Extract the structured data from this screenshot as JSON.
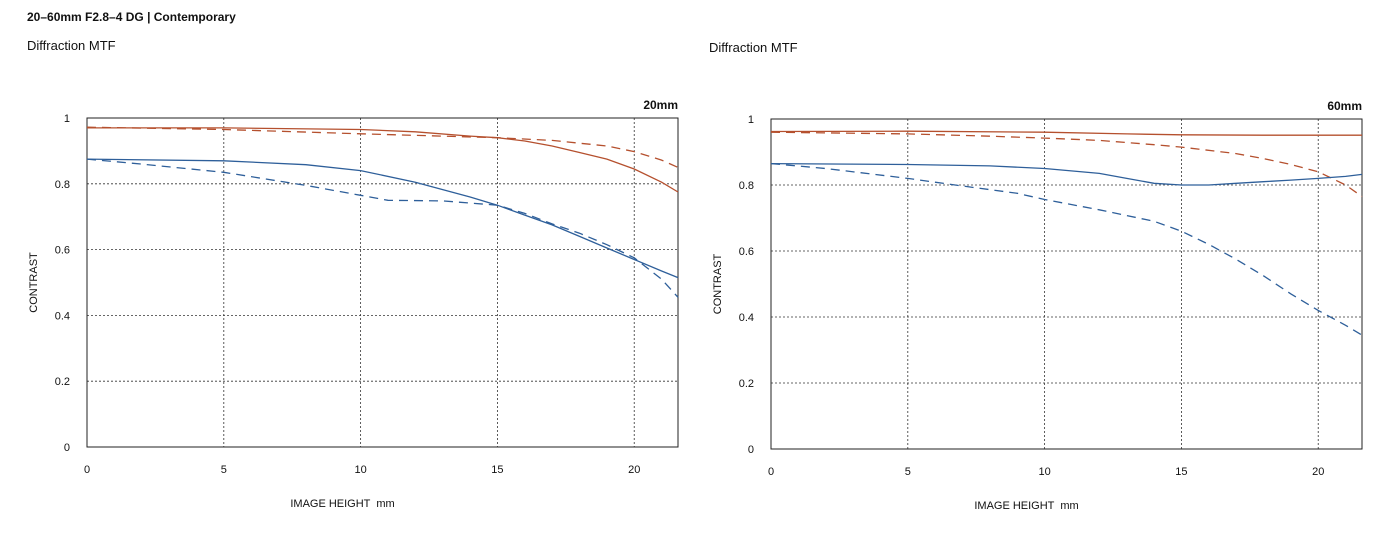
{
  "header": {
    "title": "20–60mm F2.8–4 DG | Contemporary"
  },
  "colors": {
    "sagittal_red": "#b5502e",
    "meridional_blue": "#2e5f9a",
    "grid": "#333333"
  },
  "chart_data": [
    {
      "type": "line",
      "title": "Diffraction MTF",
      "focal_label": "20mm",
      "xlabel": "IMAGE HEIGHT  mm",
      "ylabel": "CONTRAST",
      "xlim": [
        0,
        21.6
      ],
      "ylim": [
        0,
        1
      ],
      "xticks": [
        0,
        5,
        10,
        15,
        20
      ],
      "yticks": [
        0,
        0.2,
        0.4,
        0.6,
        0.8,
        1
      ],
      "ytick_labels": [
        "0",
        "0.2",
        "0.4",
        "0.6",
        "0.8",
        "1"
      ],
      "grid": true,
      "series": [
        {
          "color": "#b5502e",
          "style": "solid",
          "x": [
            0,
            5,
            10,
            12,
            14,
            15,
            16,
            17,
            18,
            19,
            20,
            21,
            21.6
          ],
          "y": [
            0.97,
            0.97,
            0.965,
            0.958,
            0.945,
            0.94,
            0.93,
            0.915,
            0.895,
            0.875,
            0.845,
            0.805,
            0.775
          ]
        },
        {
          "color": "#b5502e",
          "style": "dashed",
          "x": [
            0,
            5,
            10,
            15,
            17,
            19,
            20,
            21,
            21.6
          ],
          "y": [
            0.972,
            0.965,
            0.952,
            0.94,
            0.932,
            0.915,
            0.898,
            0.872,
            0.85
          ]
        },
        {
          "color": "#2e5f9a",
          "style": "solid",
          "x": [
            0,
            5,
            8,
            10,
            12,
            14,
            15,
            16,
            17,
            18,
            19,
            20,
            21,
            21.6
          ],
          "y": [
            0.875,
            0.87,
            0.858,
            0.84,
            0.805,
            0.76,
            0.735,
            0.705,
            0.675,
            0.64,
            0.605,
            0.57,
            0.535,
            0.515
          ]
        },
        {
          "color": "#2e5f9a",
          "style": "dashed",
          "x": [
            0,
            2,
            5,
            8,
            10,
            11,
            13,
            15,
            16,
            17,
            18,
            19,
            20,
            21,
            21.6
          ],
          "y": [
            0.875,
            0.86,
            0.835,
            0.795,
            0.765,
            0.75,
            0.748,
            0.735,
            0.71,
            0.678,
            0.65,
            0.615,
            0.575,
            0.51,
            0.455
          ]
        }
      ]
    },
    {
      "type": "line",
      "title": "Diffraction MTF",
      "focal_label": "60mm",
      "xlabel": "IMAGE HEIGHT  mm",
      "ylabel": "CONTRAST",
      "xlim": [
        0,
        21.6
      ],
      "ylim": [
        0,
        1
      ],
      "xticks": [
        0,
        5,
        10,
        15,
        20
      ],
      "yticks": [
        0,
        0.2,
        0.4,
        0.6,
        0.8,
        1
      ],
      "ytick_labels": [
        "0",
        "0.2",
        "0.4",
        "0.6",
        "0.8",
        "1"
      ],
      "grid": true,
      "series": [
        {
          "color": "#b5502e",
          "style": "solid",
          "x": [
            0,
            5,
            10,
            13,
            15,
            18,
            21.6
          ],
          "y": [
            0.962,
            0.963,
            0.96,
            0.955,
            0.952,
            0.951,
            0.951
          ]
        },
        {
          "color": "#b5502e",
          "style": "dashed",
          "x": [
            0,
            5,
            8,
            10,
            12,
            14,
            15,
            17,
            18,
            19,
            20,
            21,
            21.6
          ],
          "y": [
            0.96,
            0.955,
            0.948,
            0.942,
            0.935,
            0.922,
            0.915,
            0.895,
            0.88,
            0.862,
            0.84,
            0.8,
            0.765
          ]
        },
        {
          "color": "#2e5f9a",
          "style": "solid",
          "x": [
            0,
            5,
            8,
            10,
            12,
            13,
            14,
            15,
            16,
            17,
            18,
            19,
            20,
            21,
            21.6
          ],
          "y": [
            0.865,
            0.862,
            0.858,
            0.85,
            0.835,
            0.82,
            0.805,
            0.8,
            0.8,
            0.805,
            0.81,
            0.815,
            0.82,
            0.826,
            0.832
          ]
        },
        {
          "color": "#2e5f9a",
          "style": "dashed",
          "x": [
            0,
            2,
            5,
            7,
            9,
            10,
            12,
            14,
            15,
            16,
            17,
            18,
            19,
            20,
            21,
            21.6
          ],
          "y": [
            0.865,
            0.85,
            0.82,
            0.797,
            0.775,
            0.756,
            0.725,
            0.69,
            0.66,
            0.62,
            0.575,
            0.525,
            0.47,
            0.42,
            0.375,
            0.345
          ]
        }
      ]
    }
  ]
}
